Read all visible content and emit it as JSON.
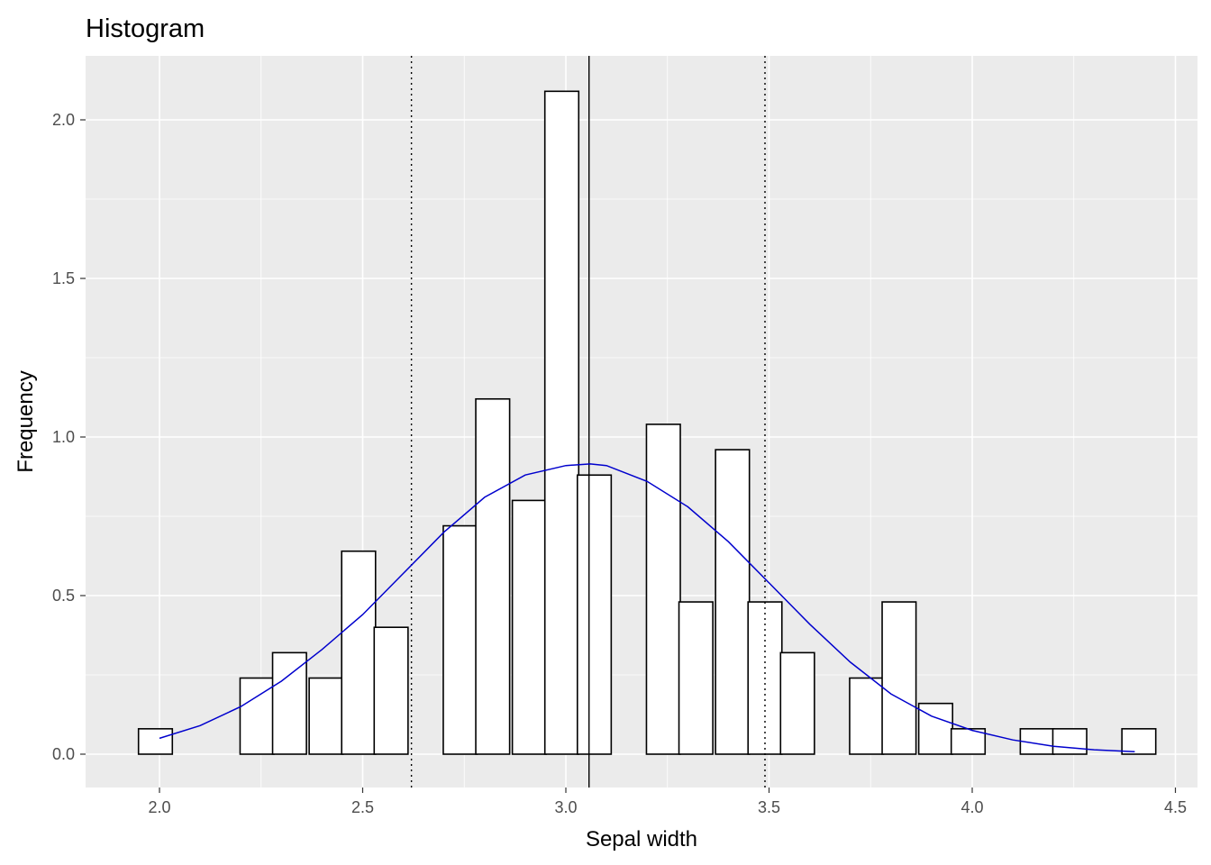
{
  "chart_data": {
    "type": "bar",
    "title": "Histogram",
    "xlabel": "Sepal width",
    "ylabel": "Frequency",
    "xlim": [
      1.83,
      4.54
    ],
    "ylim": [
      -0.1,
      2.2
    ],
    "x_ticks": [
      "2.0",
      "2.5",
      "3.0",
      "3.5",
      "4.0",
      "4.5"
    ],
    "y_ticks": [
      "0.0",
      "0.5",
      "1.0",
      "1.5",
      "2.0"
    ],
    "bin_width": 0.0833,
    "bins": [
      {
        "x": 1.99,
        "y": 0.08
      },
      {
        "x": 2.24,
        "y": 0.24
      },
      {
        "x": 2.32,
        "y": 0.32
      },
      {
        "x": 2.41,
        "y": 0.24
      },
      {
        "x": 2.49,
        "y": 0.64
      },
      {
        "x": 2.57,
        "y": 0.4
      },
      {
        "x": 2.74,
        "y": 0.72
      },
      {
        "x": 2.82,
        "y": 1.12
      },
      {
        "x": 2.91,
        "y": 0.8
      },
      {
        "x": 2.99,
        "y": 2.09
      },
      {
        "x": 3.07,
        "y": 0.88
      },
      {
        "x": 3.24,
        "y": 1.04
      },
      {
        "x": 3.32,
        "y": 0.48
      },
      {
        "x": 3.41,
        "y": 0.96
      },
      {
        "x": 3.49,
        "y": 0.48
      },
      {
        "x": 3.57,
        "y": 0.32
      },
      {
        "x": 3.74,
        "y": 0.24
      },
      {
        "x": 3.82,
        "y": 0.48
      },
      {
        "x": 3.91,
        "y": 0.16
      },
      {
        "x": 3.99,
        "y": 0.08
      },
      {
        "x": 4.16,
        "y": 0.08
      },
      {
        "x": 4.24,
        "y": 0.08
      },
      {
        "x": 4.41,
        "y": 0.08
      }
    ],
    "density_curve": {
      "color": "#0000cd",
      "x": [
        2.0,
        2.1,
        2.2,
        2.3,
        2.4,
        2.5,
        2.6,
        2.7,
        2.8,
        2.9,
        3.0,
        3.06,
        3.1,
        3.2,
        3.3,
        3.4,
        3.5,
        3.6,
        3.7,
        3.8,
        3.9,
        4.0,
        4.1,
        4.2,
        4.3,
        4.4
      ],
      "y": [
        0.05,
        0.09,
        0.15,
        0.23,
        0.33,
        0.44,
        0.57,
        0.7,
        0.81,
        0.88,
        0.91,
        0.915,
        0.91,
        0.86,
        0.78,
        0.67,
        0.54,
        0.41,
        0.29,
        0.19,
        0.12,
        0.075,
        0.045,
        0.025,
        0.014,
        0.008
      ]
    },
    "mean_line": 3.057,
    "sd_lines": [
      2.62,
      3.49
    ],
    "colors": {
      "panel": "#ebebeb",
      "grid": "#ffffff",
      "bar_fill": "#ffffff",
      "bar_stroke": "#000000",
      "curve": "#0000cd"
    }
  }
}
